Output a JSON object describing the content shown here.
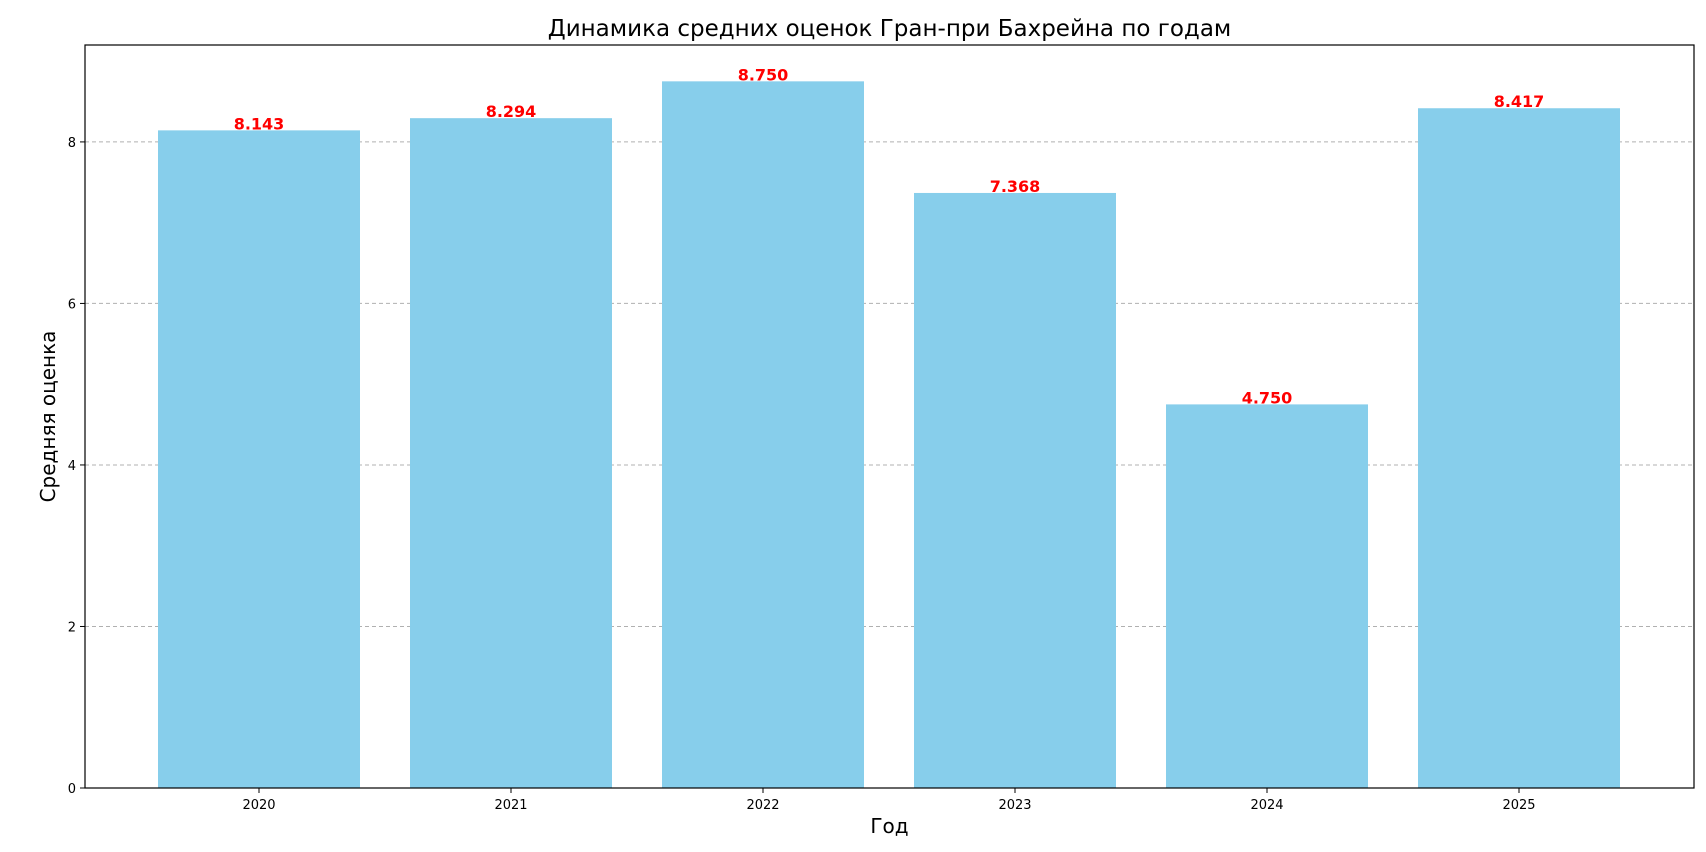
{
  "chart_data": {
    "type": "bar",
    "title": "Динамика средних оценок Гран-при Бахрейна по годам",
    "xlabel": "Год",
    "ylabel": "Средняя оценка",
    "categories": [
      "2020",
      "2021",
      "2022",
      "2023",
      "2024",
      "2025"
    ],
    "values": [
      8.143,
      8.294,
      8.75,
      7.368,
      4.75,
      8.417
    ],
    "value_labels": [
      "8.143",
      "8.294",
      "8.750",
      "7.368",
      "4.750",
      "8.417"
    ],
    "ylim": [
      0,
      9.2
    ],
    "yticks": [
      0,
      2,
      4,
      6,
      8
    ],
    "grid": {
      "axis": "y",
      "style": "dashed",
      "color": "#b0b0b0"
    },
    "colors": {
      "bar": "#87ceeb",
      "value_label": "#ff0000",
      "axis": "#000000"
    }
  }
}
